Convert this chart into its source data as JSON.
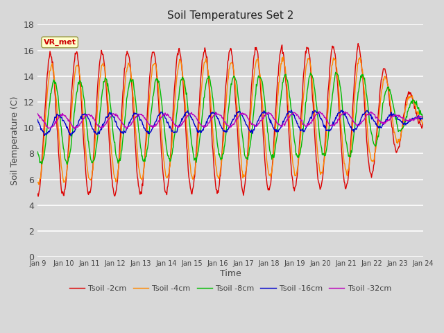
{
  "title": "Soil Temperatures Set 2",
  "xlabel": "Time",
  "ylabel": "Soil Temperature (C)",
  "ylim": [
    0,
    18
  ],
  "yticks": [
    0,
    2,
    4,
    6,
    8,
    10,
    12,
    14,
    16,
    18
  ],
  "x_labels": [
    "Jan 9",
    "Jan 10",
    "Jan 11",
    "Jan 12",
    "Jan 13",
    "Jan 14",
    "Jan 15",
    "Jan 16",
    "Jan 17",
    "Jan 18",
    "Jan 19",
    "Jan 20",
    "Jan 21",
    "Jan 22",
    "Jan 23",
    "Jan 24"
  ],
  "series_colors": [
    "#dd0000",
    "#ff8800",
    "#00bb00",
    "#0000cc",
    "#bb00bb"
  ],
  "series_labels": [
    "Tsoil -2cm",
    "Tsoil -4cm",
    "Tsoil -8cm",
    "Tsoil -16cm",
    "Tsoil -32cm"
  ],
  "line_width": 1.0,
  "annotation_text": "VR_met",
  "bg_color": "#e8e8e8",
  "n_days": 15,
  "samples_per_day": 48
}
